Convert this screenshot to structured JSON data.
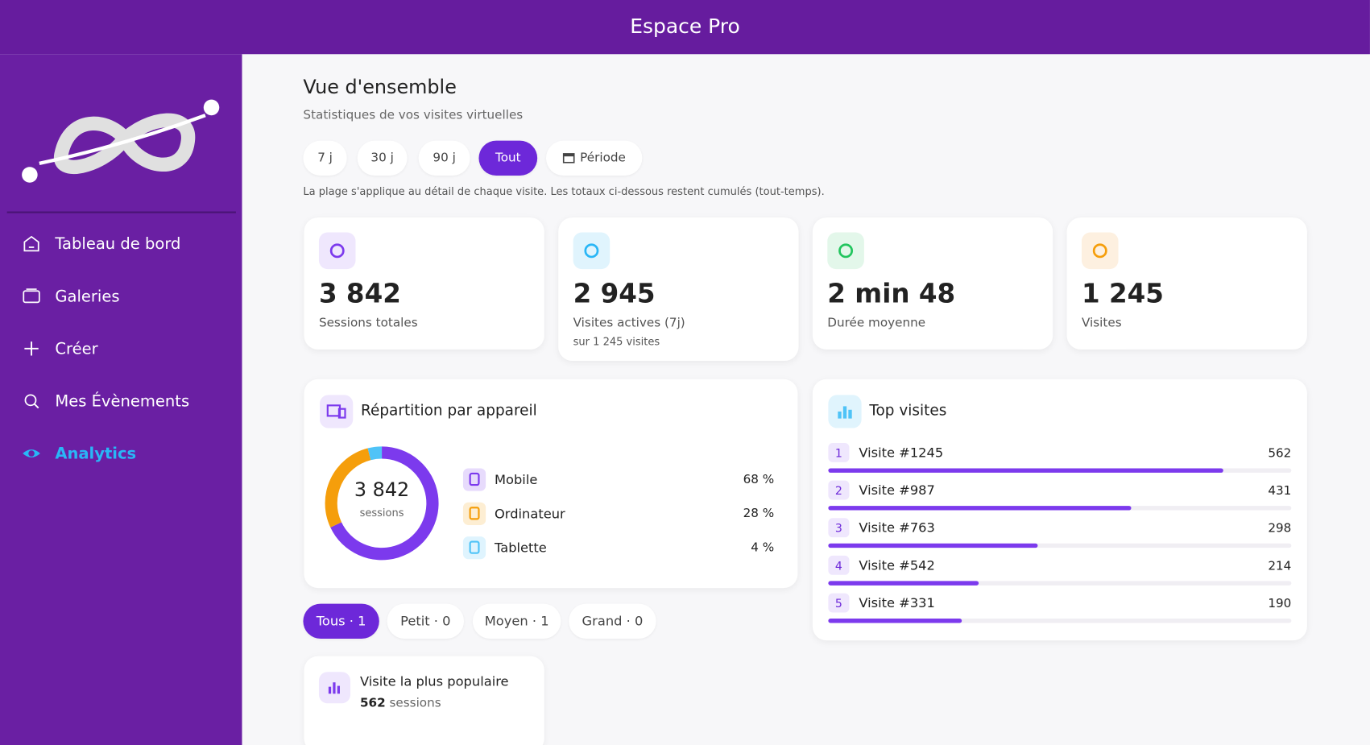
{
  "header": {
    "title": "Espace Pro"
  },
  "nav": {
    "items": [
      "Tableau de bord",
      "Galeries",
      "Créer",
      "Mes Évènements",
      "Analytics"
    ],
    "active": 4
  },
  "overview": {
    "title": "Vue d'ensemble",
    "subtitle": "Statistiques de vos visites virtuelles",
    "filters": [
      "7 j",
      "30 j",
      "90 j",
      "Tout",
      "Période"
    ],
    "active_filter": 3,
    "note": "La plage s'applique au détail de chaque visite. Les totaux ci-dessous restent cumulés (tout-temps)."
  },
  "stats": [
    {
      "value": "3 842",
      "label": "Sessions totales"
    },
    {
      "value": "2 945",
      "label": "Visites actives (7j)",
      "sub": "sur 1 245 visites"
    },
    {
      "value": "2 min 48",
      "label": "Durée moyenne"
    },
    {
      "value": "1 245",
      "label": "Visites"
    }
  ],
  "devices": {
    "title": "Répartition par appareil",
    "total": "3 842",
    "total_label": "sessions",
    "names": [
      "Mobile",
      "Ordinateur",
      "Tablette"
    ],
    "values": [
      68,
      28,
      4
    ],
    "value_labels": [
      "68 %",
      "28 %",
      "4 %"
    ],
    "colors": [
      "#7c3aed",
      "#f59e0b",
      "#4fc3f7"
    ]
  },
  "top": {
    "title": "Top visites",
    "ranks": [
      "1",
      "2",
      "3",
      "4",
      "5"
    ],
    "names": [
      "Visite #1245",
      "Visite #987",
      "Visite #763",
      "Visite #542",
      "Visite #331"
    ],
    "values": [
      562,
      431,
      298,
      214,
      190
    ],
    "color": "#7c3aed"
  },
  "sizes": {
    "items": [
      "Tous · 1",
      "Petit · 0",
      "Moyen · 1",
      "Grand · 0"
    ],
    "active": 0
  },
  "popular": {
    "title": "Visite la plus populaire",
    "value": "562",
    "unit": "sessions"
  }
}
